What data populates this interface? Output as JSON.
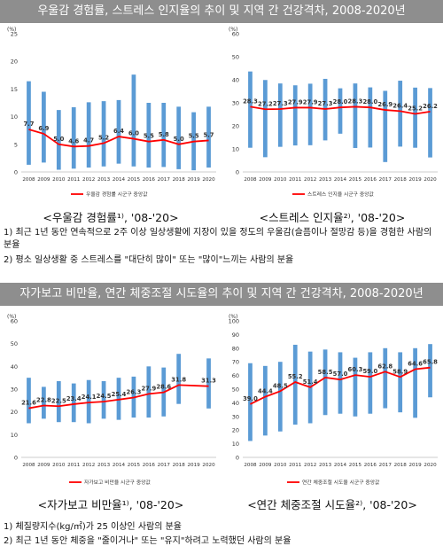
{
  "section1": {
    "banner": "우울감 경험률, 스트레스 인지율의 추이 및 지역 간 건강격차, 2008-2020년",
    "notes": [
      "1) 최근 1년 동안 연속적으로 2주 이상 일상생활에 지장이 있을 정도의 우울감(슬픔이나 절망감 등)을 경험한 사람의 분율",
      "2) 평소 일상생활 중 스트레스를 \"대단히 많이\" 또는 \"많이\"느끼는 사람의 분율"
    ]
  },
  "section2": {
    "banner": "자가보고 비만율, 연간 체중조절 시도율의 추이 및 지역 간 건강격차, 2008-2020년",
    "notes": [
      "1) 체질량지수(kg/㎡)가 25 이상인 사람의 분율",
      "2) 최근 1년 동안 체중을 \"줄이거나\" 또는 \"유지\"하려고 노력했던 사람의 분율"
    ]
  },
  "chart_data": [
    {
      "type": "bar",
      "caption": "<우울감 경험률¹⁾, '08-'20>",
      "unit": "(%)",
      "x": [
        "2008",
        "2009",
        "2010",
        "2011",
        "2012",
        "2013",
        "2014",
        "2015",
        "2016",
        "2017",
        "2018",
        "2019",
        "2020"
      ],
      "ylim": [
        0,
        25
      ],
      "yticks": [
        0,
        5,
        10,
        15,
        20,
        25
      ],
      "range_bars": [
        [
          1.3,
          16.4
        ],
        [
          1.7,
          14.5
        ],
        [
          0.4,
          11.2
        ],
        [
          0.6,
          11.7
        ],
        [
          0.8,
          12.6
        ],
        [
          1.0,
          12.8
        ],
        [
          1.5,
          13.0
        ],
        [
          1.0,
          17.6
        ],
        [
          0.8,
          12.5
        ],
        [
          0.9,
          12.5
        ],
        [
          0.5,
          11.8
        ],
        [
          0.3,
          10.8
        ],
        [
          0.8,
          11.8
        ]
      ],
      "median_line": {
        "name": "우울감 경험률 시군구 중앙값",
        "values": [
          7.7,
          6.9,
          5.0,
          4.6,
          4.7,
          5.2,
          6.4,
          6.0,
          5.5,
          5.8,
          5.0,
          5.5,
          5.7
        ],
        "labels": [
          "7.7",
          "6.9",
          "5.0",
          "4.6",
          "4.7",
          "5.2",
          "6.4",
          "6.0",
          "5.5",
          "5.8",
          "5.0",
          "5.5",
          "5.7"
        ]
      },
      "colors": {
        "bar": "#5b9bd5",
        "line": "#ff0000"
      }
    },
    {
      "type": "bar",
      "caption": "<스트레스 인지율²⁾, '08-'20>",
      "unit": "(%)",
      "x": [
        "2008",
        "2009",
        "2010",
        "2011",
        "2012",
        "2013",
        "2014",
        "2015",
        "2016",
        "2017",
        "2018",
        "2019",
        "2020"
      ],
      "ylim": [
        0,
        60
      ],
      "yticks": [
        0,
        10,
        20,
        30,
        40,
        50,
        60
      ],
      "range_bars": [
        [
          10.5,
          43.6
        ],
        [
          6.4,
          39.9
        ],
        [
          10.9,
          38.4
        ],
        [
          11.5,
          37.6
        ],
        [
          11.6,
          38.3
        ],
        [
          13.7,
          40.4
        ],
        [
          16.6,
          36.3
        ],
        [
          10.4,
          38.4
        ],
        [
          10.6,
          36.7
        ],
        [
          4.3,
          35.2
        ],
        [
          11.0,
          39.6
        ],
        [
          10.5,
          36.6
        ],
        [
          6.3,
          36.4
        ]
      ],
      "median_line": {
        "name": "스트레스 인지율 시군구 중앙값",
        "values": [
          28.3,
          27.2,
          27.3,
          27.9,
          27.9,
          27.3,
          28.0,
          28.3,
          28.0,
          26.9,
          26.4,
          25.2,
          26.2
        ],
        "labels": [
          "28.3",
          "27.2",
          "27.3",
          "27.9",
          "27.9",
          "27.3",
          "28.0",
          "28.3",
          "28.0",
          "26.9",
          "26.4",
          "25.2",
          "26.2"
        ]
      },
      "colors": {
        "bar": "#5b9bd5",
        "line": "#ff0000"
      }
    },
    {
      "type": "bar",
      "caption": "<자가보고 비만율¹⁾, '08-'20>",
      "unit": "(%)",
      "x": [
        "2008",
        "2009",
        "2010",
        "2011",
        "2012",
        "2013",
        "2014",
        "2015",
        "2016",
        "2017",
        "2018",
        "2019",
        "2020"
      ],
      "ylim": [
        0,
        60
      ],
      "yticks": [
        0,
        10,
        20,
        30,
        40,
        50,
        60
      ],
      "range_bars": [
        [
          15.0,
          35.0
        ],
        [
          17.0,
          31.0
        ],
        [
          15.5,
          33.5
        ],
        [
          15.5,
          32.5
        ],
        [
          15.0,
          34.0
        ],
        [
          17.0,
          33.5
        ],
        [
          16.5,
          35.0
        ],
        [
          17.5,
          35.5
        ],
        [
          17.5,
          40.0
        ],
        [
          18.0,
          39.5
        ],
        [
          23.5,
          45.5
        ],
        [
          null,
          null
        ],
        [
          21.5,
          43.5
        ]
      ],
      "median_line": {
        "name": "자가보고 비만율 시군구 중앙값",
        "values": [
          21.6,
          22.8,
          22.5,
          23.4,
          24.1,
          24.5,
          25.4,
          26.3,
          27.9,
          28.6,
          31.8,
          null,
          31.3
        ],
        "labels": [
          "21.6",
          "22.8",
          "22.5",
          "23.4",
          "24.1",
          "24.5",
          "25.4",
          "26.3",
          "27.9",
          "28.6",
          "31.8",
          "",
          "31.3"
        ]
      },
      "colors": {
        "bar": "#5b9bd5",
        "line": "#ff0000"
      }
    },
    {
      "type": "bar",
      "caption": "<연간 체중조절 시도율²⁾, '08-'20>",
      "unit": "(%)",
      "x": [
        "2008",
        "2009",
        "2010",
        "2011",
        "2012",
        "2013",
        "2014",
        "2015",
        "2016",
        "2017",
        "2018",
        "2019",
        "2020"
      ],
      "ylim": [
        0,
        100
      ],
      "yticks": [
        0,
        10,
        20,
        30,
        40,
        50,
        60,
        70,
        80,
        90,
        100
      ],
      "range_bars": [
        [
          12.0,
          69.0
        ],
        [
          16.0,
          67.0
        ],
        [
          19.0,
          70.0
        ],
        [
          24.0,
          82.5
        ],
        [
          25.0,
          77.5
        ],
        [
          31.0,
          79.0
        ],
        [
          32.0,
          77.0
        ],
        [
          30.0,
          73.0
        ],
        [
          32.0,
          77.0
        ],
        [
          36.0,
          80.0
        ],
        [
          33.0,
          77.0
        ],
        [
          29.0,
          80.0
        ],
        [
          44.0,
          83.0
        ]
      ],
      "median_line": {
        "name": "연간 체중조절 시도율 시군구 중앙값",
        "values": [
          39.0,
          44.4,
          48.5,
          55.2,
          51.4,
          58.5,
          57.0,
          60.3,
          59.0,
          62.8,
          58.9,
          64.6,
          65.8
        ],
        "labels": [
          "39.0",
          "44.4",
          "48.5",
          "55.2",
          "51.4",
          "58.5",
          "57.0",
          "60.3",
          "59.0",
          "62.8",
          "58.9",
          "64.6",
          "65.8"
        ]
      },
      "colors": {
        "bar": "#5b9bd5",
        "line": "#ff0000"
      }
    }
  ]
}
